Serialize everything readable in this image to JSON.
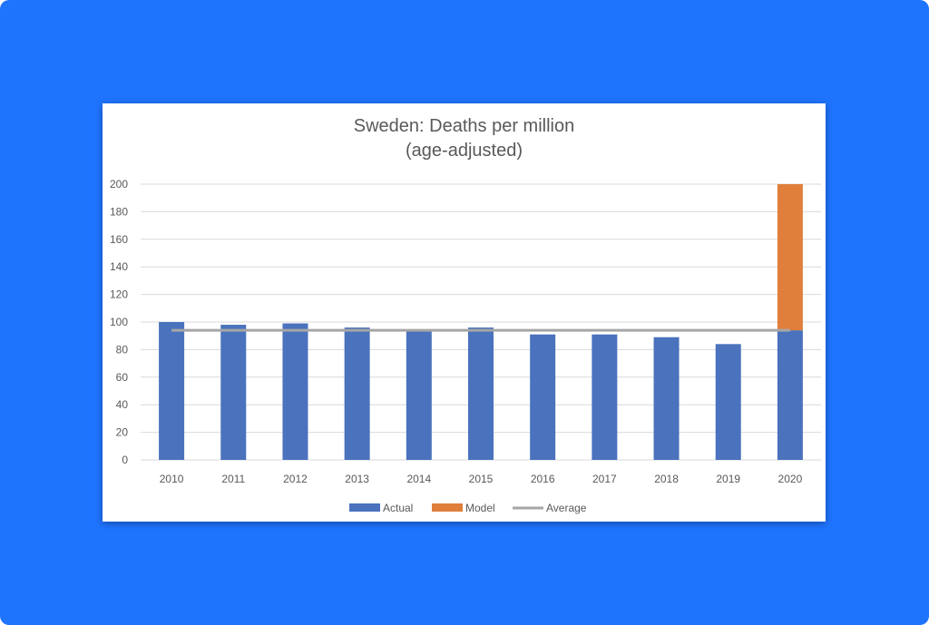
{
  "colors": {
    "background": "#1f74fe",
    "card": "#ffffff",
    "actual": "#4a72bd",
    "model": "#e07f3c",
    "average": "#a6a6a6",
    "gridline": "#d9d9d9",
    "text": "#595959"
  },
  "chart_data": {
    "type": "bar",
    "stacked": true,
    "title": "Sweden: Deaths per million",
    "subtitle": "(age-adjusted)",
    "xlabel": "",
    "ylabel": "",
    "ylim": [
      0,
      200
    ],
    "yticks": [
      0,
      20,
      40,
      60,
      80,
      100,
      120,
      140,
      160,
      180,
      200
    ],
    "grid": true,
    "legend_position": "bottom",
    "categories": [
      "2010",
      "2011",
      "2012",
      "2013",
      "2014",
      "2015",
      "2016",
      "2017",
      "2018",
      "2019",
      "2020"
    ],
    "series": [
      {
        "name": "Actual",
        "type": "bar",
        "values": [
          100,
          98,
          99,
          96,
          94,
          96,
          91,
          91,
          89,
          84,
          94
        ]
      },
      {
        "name": "Model",
        "type": "bar",
        "values": [
          0,
          0,
          0,
          0,
          0,
          0,
          0,
          0,
          0,
          0,
          106
        ]
      },
      {
        "name": "Average",
        "type": "line",
        "values": [
          94,
          94,
          94,
          94,
          94,
          94,
          94,
          94,
          94,
          94,
          94
        ]
      }
    ]
  }
}
